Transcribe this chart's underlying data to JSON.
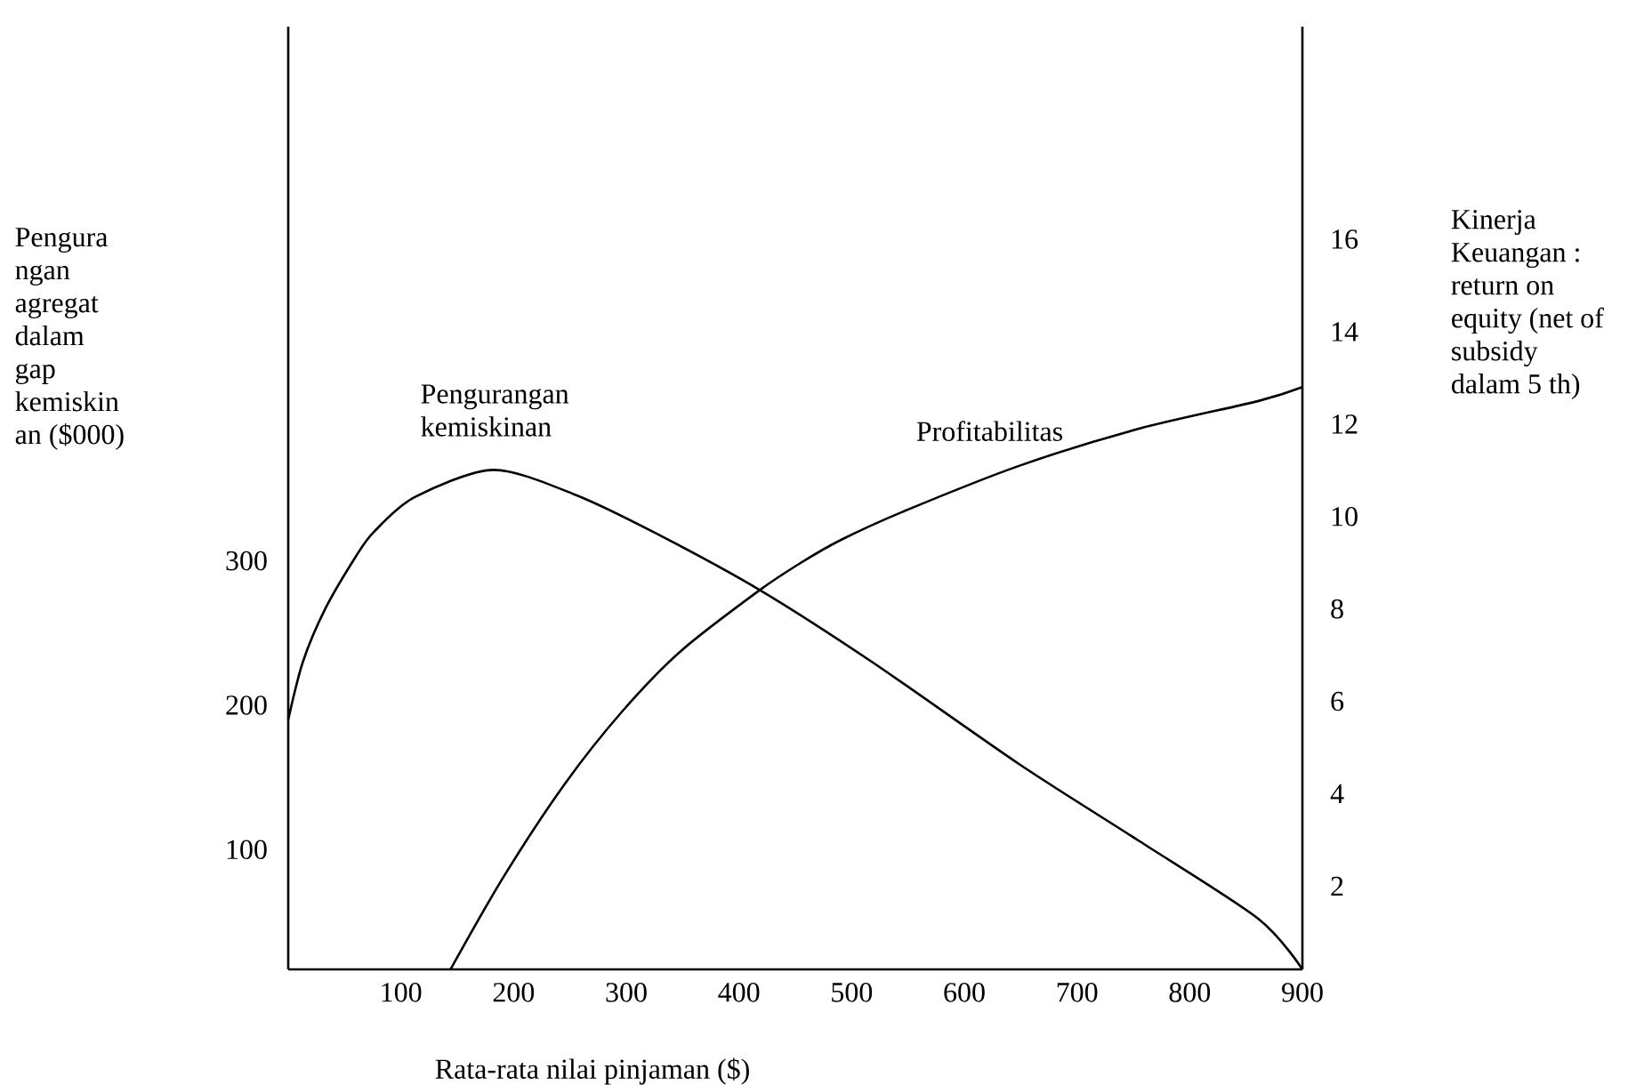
{
  "chart_data": {
    "type": "line",
    "xlabel": "Rata-rata nilai pinjaman ($)",
    "ylabel": "Pengura ngan agregat dalam gap kemiskin an ($000)",
    "y2label": "Kinerja Keuangan : return on equity (net of subsidy dalam 5 th)",
    "xlim": [
      0,
      900
    ],
    "xticks": [
      100,
      200,
      300,
      400,
      500,
      600,
      700,
      800,
      900
    ],
    "ylim": [
      17,
      670
    ],
    "yticks": [
      100,
      200,
      300
    ],
    "y2lim": [
      0.2,
      20.6
    ],
    "y2ticks": [
      2,
      4,
      6,
      8,
      10,
      12,
      14,
      16
    ],
    "series": [
      {
        "name": "Pengurangan kemiskinan",
        "color": "#000000",
        "x": [
          0,
          13,
          33,
          60,
          76,
          112,
          182,
          254,
          324,
          418,
          518,
          649,
          755,
          861,
          900
        ],
        "values": [
          190,
          230,
          267,
          303,
          320,
          344,
          363,
          346,
          320,
          280,
          230,
          159,
          106,
          52,
          17
        ]
      },
      {
        "name": "Profitabilitas",
        "color": "#000000",
        "axis": "y2",
        "x": [
          144,
          191,
          245,
          297,
          349,
          418,
          455,
          491,
          545,
          649,
          755,
          861,
          900
        ],
        "values": [
          0.2,
          2.2,
          4.2,
          5.8,
          7.1,
          8.4,
          9.0,
          9.5,
          10.1,
          11.1,
          11.9,
          12.5,
          12.8
        ]
      }
    ]
  }
}
